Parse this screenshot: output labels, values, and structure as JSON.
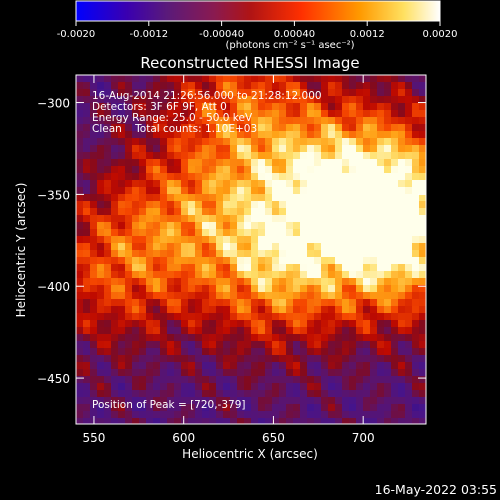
{
  "chart_data": {
    "type": "heatmap",
    "title": "Reconstructed RHESSI Image",
    "xlabel": "Heliocentric X (arcsec)",
    "ylabel": "Heliocentric Y (arcsec)",
    "xlim": [
      540,
      735
    ],
    "ylim": [
      -475,
      -285
    ],
    "xticks": [
      550,
      600,
      650,
      700
    ],
    "yticks": [
      -300,
      -350,
      -400,
      -450
    ],
    "grid": false,
    "colorbar": {
      "placement": "top",
      "range": [
        -0.002,
        0.002
      ],
      "ticks": [
        "-0.0020",
        "-0.0012",
        "-0.00040",
        "0.00040",
        "0.0012",
        "0.0020"
      ],
      "unit_label": "(photons cm⁻² s⁻¹ asec⁻²)"
    },
    "info_lines": [
      "16-Aug-2014 21:26:56.000 to 21:28:12.000",
      "Detectors: 3F 6F 9F, Att 0",
      "Energy Range: 25.0 - 50.0 keV",
      "Clean    Total counts: 1.10E+03"
    ],
    "peak_label": "Position of Peak = [720,-379]",
    "peak": [
      720,
      -379
    ],
    "hotspots": [
      {
        "x": 720,
        "y": -379,
        "value": 0.002
      },
      {
        "x": 712,
        "y": -340,
        "value": 0.0016
      },
      {
        "x": 650,
        "y": -392,
        "value": 0.0016
      },
      {
        "x": 600,
        "y": -360,
        "value": 0.0011
      },
      {
        "x": 560,
        "y": -392,
        "value": 0.0012
      },
      {
        "x": 630,
        "y": -300,
        "value": 0.0012
      },
      {
        "x": 668,
        "y": -345,
        "value": 0.0014
      }
    ]
  },
  "footer": {
    "timestamp": "16-May-2022 03:55"
  }
}
